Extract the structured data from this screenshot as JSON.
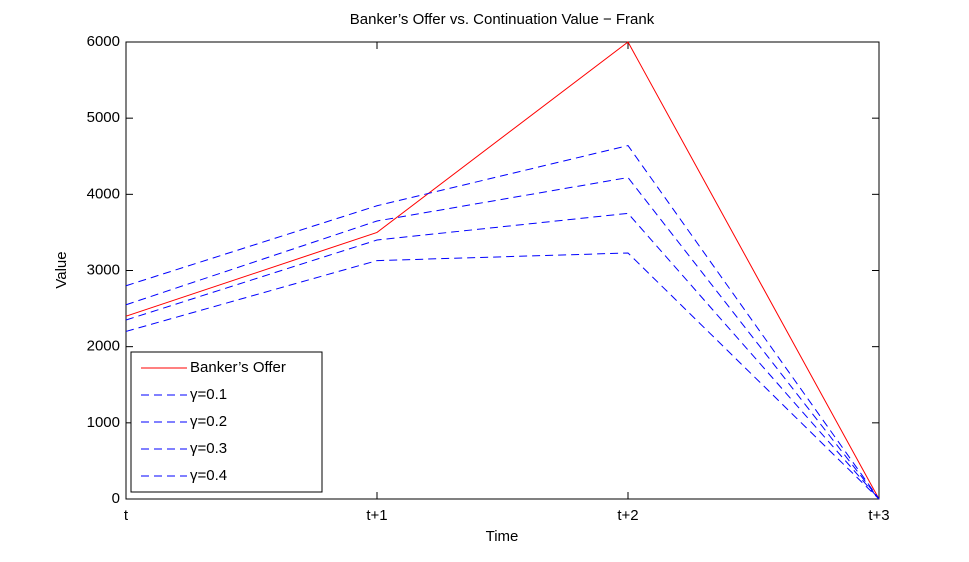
{
  "chart_data": {
    "type": "line",
    "title": "Banker’s Offer vs. Continuation Value − Frank",
    "x_label": "Time",
    "y_label": "Value",
    "categories": [
      "t",
      "t+1",
      "t+2",
      "t+3"
    ],
    "series": [
      {
        "name": "Banker’s Offer",
        "color": "#ff0000",
        "linestyle": "solid",
        "values": [
          2400,
          3500,
          6000,
          0
        ]
      },
      {
        "name": "γ=0.1",
        "color": "#0000ff",
        "linestyle": "dashed",
        "values": [
          2800,
          3850,
          4640,
          0
        ]
      },
      {
        "name": "γ=0.2",
        "color": "#0000ff",
        "linestyle": "dashed",
        "values": [
          2550,
          3650,
          4220,
          0
        ]
      },
      {
        "name": "γ=0.3",
        "color": "#0000ff",
        "linestyle": "dashed",
        "values": [
          2350,
          3400,
          3750,
          0
        ]
      },
      {
        "name": "γ=0.4",
        "color": "#0000ff",
        "linestyle": "dashed",
        "values": [
          2200,
          3130,
          3230,
          0
        ]
      }
    ],
    "ylim": [
      0,
      6000
    ],
    "yticks": [
      0,
      1000,
      2000,
      3000,
      4000,
      5000,
      6000
    ],
    "grid": false,
    "legend": "lower left"
  }
}
